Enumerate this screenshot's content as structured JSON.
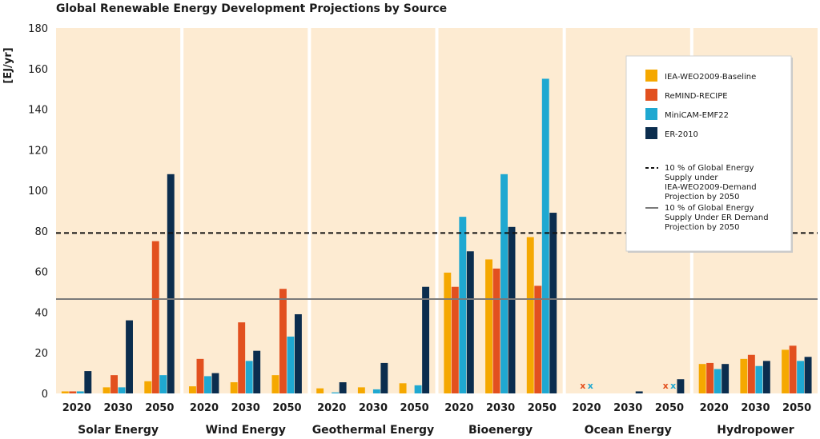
{
  "chart_data": {
    "type": "bar",
    "title": "Global Renewable Energy Development Projections by Source",
    "ylabel": "[EJ/yr]",
    "ylim": [
      0,
      180
    ],
    "yticks": [
      0,
      20,
      40,
      60,
      80,
      100,
      120,
      140,
      160,
      180
    ],
    "years": [
      "2020",
      "2030",
      "2050"
    ],
    "series": [
      {
        "name": "IEA-WEO2009-Baseline",
        "color": "#f5a800"
      },
      {
        "name": "ReMIND-RECIPE",
        "color": "#e2501f"
      },
      {
        "name": "MiniCAM-EMF22",
        "color": "#1fa8d1"
      },
      {
        "name": "ER-2010",
        "color": "#0b2d4e"
      }
    ],
    "panels": [
      {
        "name": "Solar Energy",
        "values": [
          [
            1,
            1,
            1,
            11
          ],
          [
            3,
            9,
            3,
            36
          ],
          [
            6,
            75,
            9,
            108
          ]
        ]
      },
      {
        "name": "Wind Energy",
        "values": [
          [
            3.5,
            17,
            8.5,
            10
          ],
          [
            5.5,
            35,
            16,
            21
          ],
          [
            9,
            51.5,
            28,
            39
          ]
        ]
      },
      {
        "name": "Geothermal Energy",
        "values": [
          [
            2.5,
            0,
            0.5,
            5.5
          ],
          [
            3,
            0,
            2,
            15
          ],
          [
            5,
            0,
            4,
            52.5
          ]
        ]
      },
      {
        "name": "Bioenergy",
        "values": [
          [
            59.5,
            52.5,
            87,
            70
          ],
          [
            66,
            61.5,
            108,
            82
          ],
          [
            77,
            53,
            155,
            89
          ]
        ]
      },
      {
        "name": "Ocean Energy",
        "values": [
          [
            0,
            0,
            0,
            0
          ],
          [
            0,
            0,
            0,
            1
          ],
          [
            0,
            0,
            0,
            7
          ]
        ]
      },
      {
        "name": "Hydropower",
        "values": [
          [
            14.5,
            15,
            12,
            14.5
          ],
          [
            17,
            19,
            13.5,
            16
          ],
          [
            21.5,
            23.5,
            16,
            18
          ]
        ]
      }
    ],
    "unavailable_markers": [
      {
        "panel": "Ocean Energy",
        "year": "2020",
        "series": "MiniCAM-EMF22",
        "symbol": "x"
      },
      {
        "panel": "Ocean Energy",
        "year": "2020",
        "series": "ReMIND-RECIPE",
        "symbol": "x"
      },
      {
        "panel": "Ocean Energy",
        "year": "2050",
        "series": "MiniCAM-EMF22",
        "symbol": "x"
      },
      {
        "panel": "Ocean Energy",
        "year": "2050",
        "series": "ReMIND-RECIPE",
        "symbol": "x"
      }
    ],
    "reference_lines": [
      {
        "label": "10 % of Global Energy Supply under IEA-WEO2009-Demand Projection by 2050",
        "value": 79,
        "style": "dashed",
        "color": "#111111"
      },
      {
        "label": "10 % of Global Energy Supply Under ER Demand Projection by 2050",
        "value": 46.5,
        "style": "solid",
        "color": "#7a7a7a"
      }
    ],
    "legend_position": "top-right",
    "grid": false,
    "panel_background": "#fdebd2"
  }
}
